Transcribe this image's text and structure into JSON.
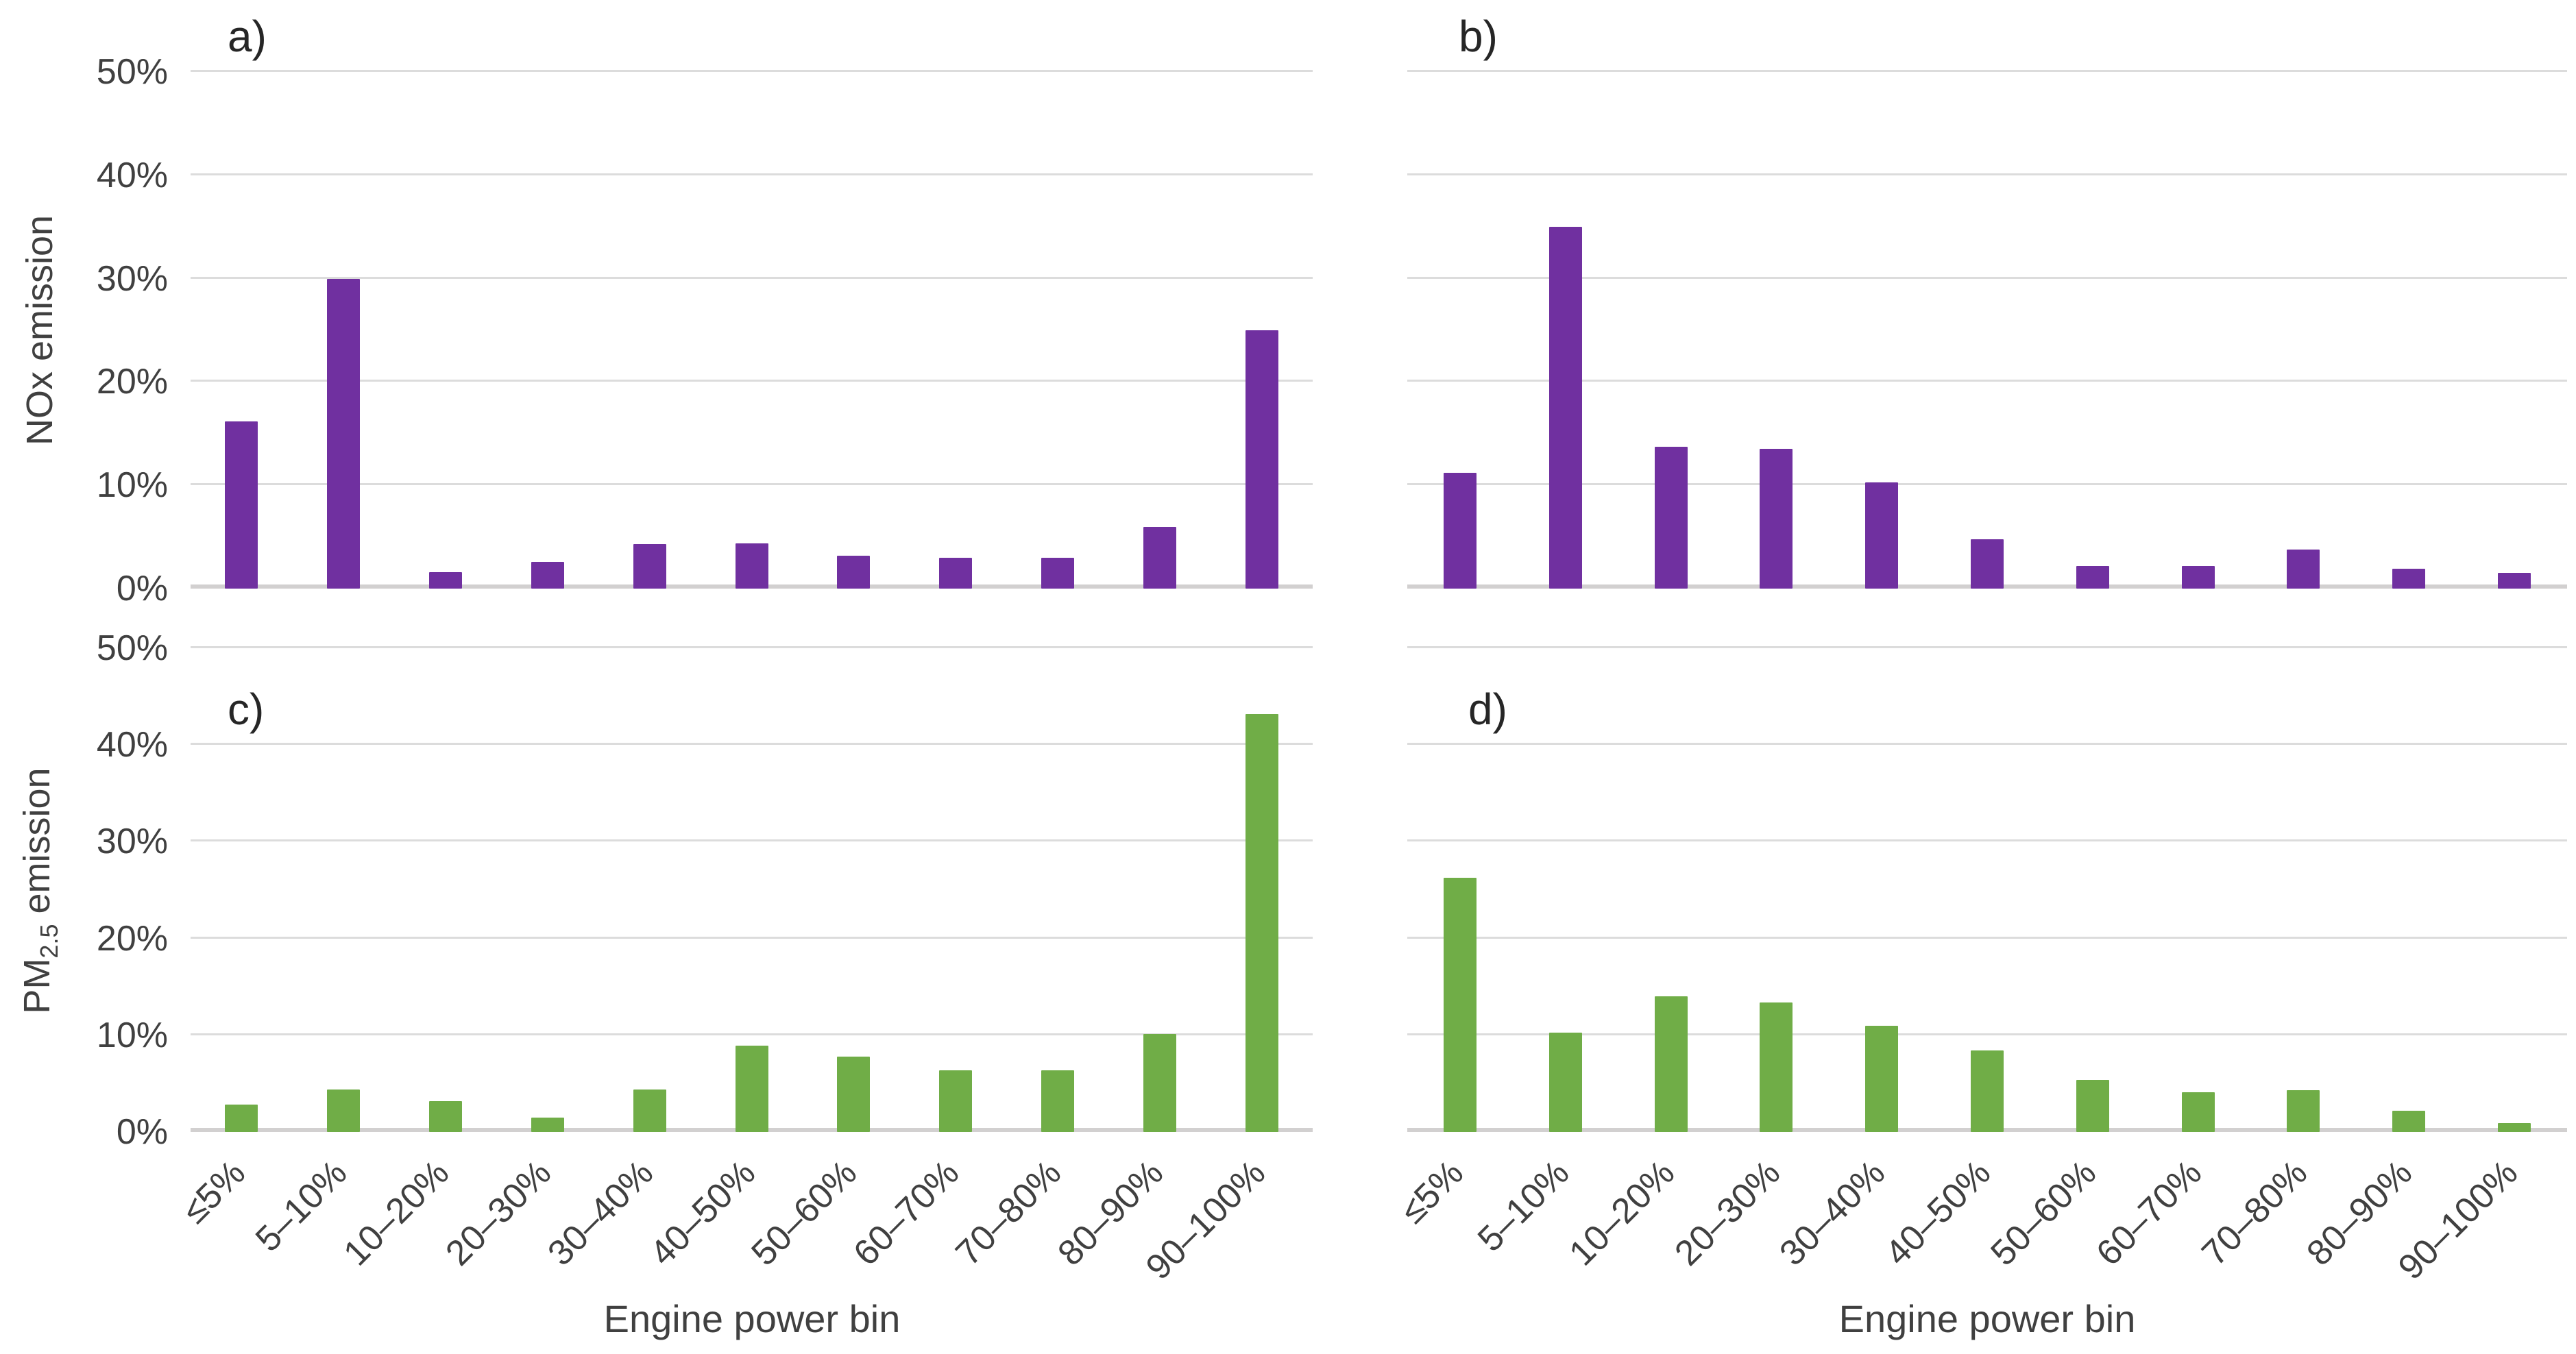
{
  "figure_background": "#ffffff",
  "colors": {
    "nox_bar": "#7030A0",
    "pm_bar": "#70AD47",
    "gridline": "#dcdcdc",
    "baseline": "#d2d0d0",
    "text": "#404040",
    "panel_letter": "#262626"
  },
  "axes": {
    "categories": [
      "≤5%",
      "5–10%",
      "10–20%",
      "20–30%",
      "30–40%",
      "40–50%",
      "50–60%",
      "60–70%",
      "70–80%",
      "80–90%",
      "90–100%"
    ],
    "y_tick_labels_top_to_bottom": [
      "50%",
      "40%",
      "30%",
      "20%",
      "10%",
      "0%"
    ],
    "x_title": "Engine power bin",
    "y_title_top": "NOx emission",
    "y_title_bottom": {
      "prefix": "PM",
      "sub": "2.5",
      "suffix": " emission"
    }
  },
  "chart_data": [
    {
      "panel": "a)",
      "type": "bar",
      "ylabel": "NOx emission",
      "xlabel": "Engine power bin",
      "categories": [
        "≤5%",
        "5–10%",
        "10–20%",
        "20–30%",
        "30–40%",
        "40–50%",
        "50–60%",
        "60–70%",
        "70–80%",
        "80–90%",
        "90–100%"
      ],
      "values": [
        16.2,
        30.0,
        1.6,
        2.6,
        4.3,
        4.4,
        3.2,
        3.0,
        3.0,
        6.0,
        25.0
      ],
      "ylim": [
        0,
        50
      ],
      "y_ticks_percent": [
        0,
        10,
        20,
        30,
        40,
        50
      ],
      "grid": true,
      "legend": false,
      "bar_color": "#7030A0"
    },
    {
      "panel": "b)",
      "type": "bar",
      "ylabel": "NOx emission",
      "xlabel": "Engine power bin",
      "categories": [
        "≤5%",
        "5–10%",
        "10–20%",
        "20–30%",
        "30–40%",
        "40–50%",
        "50–60%",
        "60–70%",
        "70–80%",
        "80–90%",
        "90–100%"
      ],
      "values": [
        11.2,
        35.0,
        13.7,
        13.5,
        10.3,
        4.8,
        2.2,
        2.2,
        3.8,
        1.9,
        1.5
      ],
      "ylim": [
        0,
        50
      ],
      "y_ticks_percent": [
        0,
        10,
        20,
        30,
        40,
        50
      ],
      "grid": true,
      "legend": false,
      "bar_color": "#7030A0"
    },
    {
      "panel": "c)",
      "type": "bar",
      "ylabel": "PM2.5 emission",
      "xlabel": "Engine power bin",
      "categories": [
        "≤5%",
        "5–10%",
        "10–20%",
        "20–30%",
        "30–40%",
        "40–50%",
        "50–60%",
        "60–70%",
        "70–80%",
        "80–90%",
        "90–100%"
      ],
      "values": [
        2.8,
        4.4,
        3.2,
        1.5,
        4.4,
        8.9,
        7.8,
        6.4,
        6.4,
        10.1,
        43.2
      ],
      "ylim": [
        0,
        50
      ],
      "y_ticks_percent": [
        0,
        10,
        20,
        30,
        40,
        50
      ],
      "grid": true,
      "legend": false,
      "bar_color": "#70AD47"
    },
    {
      "panel": "d)",
      "type": "bar",
      "ylabel": "PM2.5 emission",
      "xlabel": "Engine power bin",
      "categories": [
        "≤5%",
        "5–10%",
        "10–20%",
        "20–30%",
        "30–40%",
        "40–50%",
        "50–60%",
        "60–70%",
        "70–80%",
        "80–90%",
        "90–100%"
      ],
      "values": [
        26.3,
        10.3,
        14.0,
        13.4,
        11.0,
        8.4,
        5.4,
        4.1,
        4.3,
        2.2,
        0.9
      ],
      "ylim": [
        0,
        50
      ],
      "y_ticks_percent": [
        0,
        10,
        20,
        30,
        40,
        50
      ],
      "grid": true,
      "legend": false,
      "bar_color": "#70AD47"
    }
  ]
}
